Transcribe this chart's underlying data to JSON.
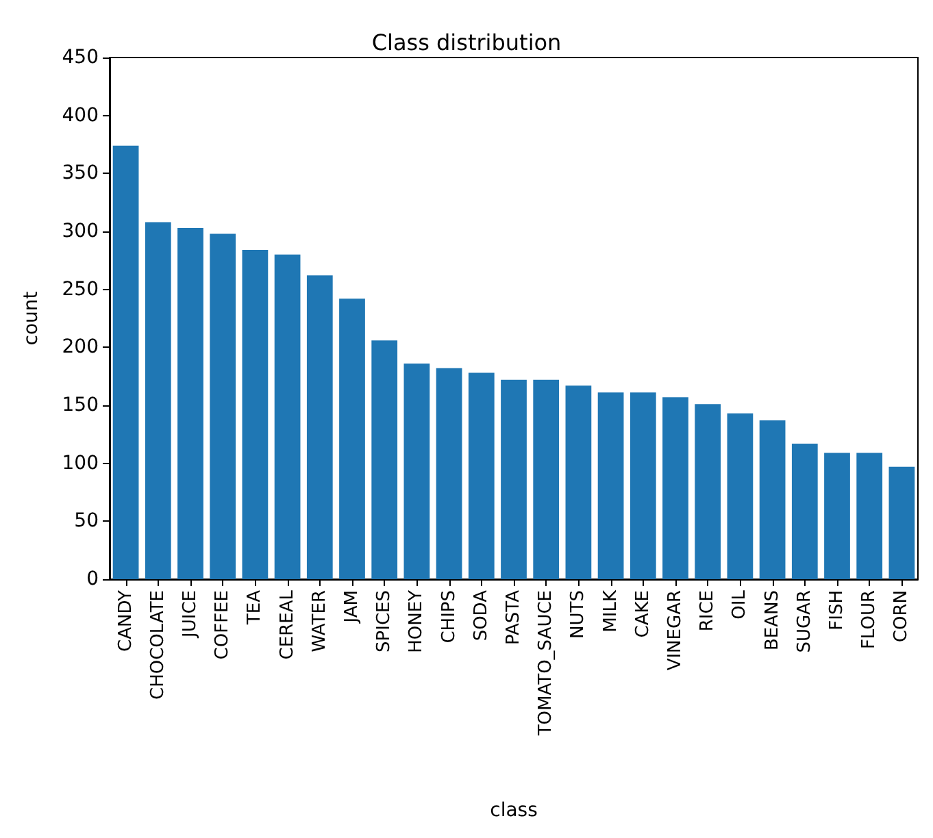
{
  "chart_data": {
    "type": "bar",
    "title": "Class distribution",
    "xlabel": "class",
    "ylabel": "count",
    "categories": [
      "CANDY",
      "CHOCOLATE",
      "JUICE",
      "COFFEE",
      "TEA",
      "CEREAL",
      "WATER",
      "JAM",
      "SPICES",
      "HONEY",
      "CHIPS",
      "SODA",
      "PASTA",
      "TOMATO_SAUCE",
      "NUTS",
      "MILK",
      "CAKE",
      "VINEGAR",
      "RICE",
      "OIL",
      "BEANS",
      "SUGAR",
      "FISH",
      "FLOUR",
      "CORN"
    ],
    "values": [
      374,
      308,
      303,
      298,
      284,
      280,
      262,
      242,
      206,
      186,
      182,
      178,
      172,
      172,
      167,
      161,
      161,
      157,
      151,
      143,
      137,
      117,
      109,
      109,
      97
    ],
    "color": "#1f77b4",
    "ylim": [
      0,
      450
    ],
    "yticks": [
      0,
      50,
      100,
      150,
      200,
      250,
      300,
      350,
      400,
      450
    ]
  }
}
